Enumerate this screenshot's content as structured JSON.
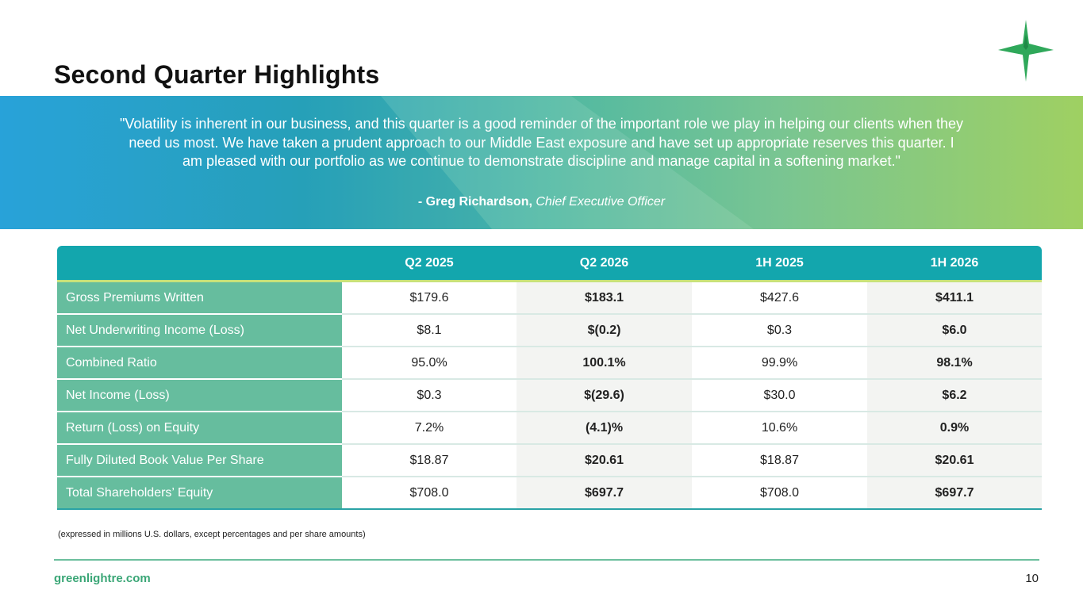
{
  "title": "Second Quarter Highlights",
  "banner": {
    "quote": "\"Volatility is inherent in our business, and this quarter is a good reminder of the important role we play in helping our clients when they need us most. We have taken a prudent approach to our Middle East exposure and have set up appropriate reserves this quarter. I am pleased with our portfolio as we continue to demonstrate discipline and manage capital in a softening market.\"",
    "attribution_name": "- Greg Richardson,",
    "attribution_role": "Chief Executive Officer"
  },
  "table": {
    "columns": [
      "",
      "Q2 2025",
      "Q2 2026",
      "1H 2025",
      "1H 2026"
    ],
    "rows": [
      {
        "label": "Gross Premiums Written",
        "values": [
          "$179.6",
          "$183.1",
          "$427.6",
          "$411.1"
        ]
      },
      {
        "label": "Net Underwriting Income (Loss)",
        "values": [
          "$8.1",
          "$(0.2)",
          "$0.3",
          "$6.0"
        ]
      },
      {
        "label": "Combined Ratio",
        "values": [
          "95.0%",
          "100.1%",
          "99.9%",
          "98.1%"
        ]
      },
      {
        "label": "Net Income (Loss)",
        "values": [
          "$0.3",
          "$(29.6)",
          "$30.0",
          "$6.2"
        ]
      },
      {
        "label": "Return (Loss) on Equity",
        "values": [
          "7.2%",
          "(4.1)%",
          "10.6%",
          "0.9%"
        ]
      },
      {
        "label": "Fully Diluted Book Value Per Share",
        "values": [
          "$18.87",
          "$20.61",
          "$18.87",
          "$20.61"
        ]
      },
      {
        "label": "Total Shareholders’ Equity",
        "values": [
          "$708.0",
          "$697.7",
          "$708.0",
          "$697.7"
        ]
      }
    ]
  },
  "footnote": "(expressed in millions U.S. dollars, except percentages and per share amounts)",
  "footer": {
    "url": "greenlightre.com",
    "page_number": "10"
  },
  "colors": {
    "header_teal": "#13a6ad",
    "label_green": "#66bd9e",
    "brand_green": "#3aa676",
    "logo_green": "#2fa85a"
  },
  "icons": {
    "logo": "star-compass-icon"
  }
}
